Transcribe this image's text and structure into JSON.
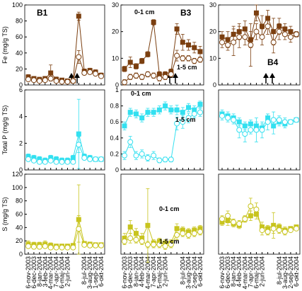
{
  "chart_data": [
    {
      "type": "line",
      "label": "B1",
      "ylabel": "Fe (mg/g TS)",
      "ylim": [
        0,
        100
      ],
      "yticks": [
        0,
        20,
        40,
        60,
        80,
        100
      ],
      "series": [
        {
          "marker": "square",
          "color": "#7b3f10",
          "values": [
            10,
            8,
            7,
            8,
            15,
            7,
            6,
            5,
            5,
            86,
            17,
            18,
            16,
            12
          ],
          "errors": [
            3,
            2,
            2,
            2,
            10,
            3,
            2,
            2,
            2,
            5,
            3,
            3,
            3,
            3
          ]
        },
        {
          "marker": "circle",
          "color": "#7b3f10",
          "values": [
            7,
            6,
            5,
            6,
            8,
            5,
            4,
            4,
            5,
            35,
            15,
            16,
            14,
            11
          ],
          "errors": [
            2,
            2,
            2,
            2,
            3,
            2,
            1,
            1,
            2,
            8,
            2,
            2,
            2,
            2
          ]
        }
      ]
    },
    {
      "type": "line",
      "label": "B3",
      "ylim": [
        0,
        30
      ],
      "yticks": [
        0,
        10,
        20,
        30
      ],
      "series": [
        {
          "name": "0-1 cm",
          "marker": "square",
          "color": "#7b3f10",
          "values": [
            6,
            8.5,
            7,
            9,
            11.5,
            23.5,
            4,
            4,
            5,
            21,
            16,
            15,
            14,
            12.5
          ],
          "errors": [
            1,
            2,
            1,
            1,
            1,
            1,
            1,
            1,
            1,
            2,
            3,
            2,
            2,
            2
          ]
        },
        {
          "name": "1-5 cm",
          "marker": "circle",
          "color": "#7b3f10",
          "values": [
            1,
            3,
            3.5,
            3,
            4,
            3.5,
            2.5,
            3,
            4,
            11,
            10,
            10,
            9,
            9.5
          ],
          "errors": [
            1,
            1,
            1,
            1,
            1,
            1,
            1,
            1,
            1,
            2,
            1,
            1,
            1,
            1
          ]
        }
      ]
    },
    {
      "type": "line",
      "label": "B4",
      "ylim": [
        0,
        30
      ],
      "yticks": [
        0,
        10,
        20,
        30
      ],
      "series": [
        {
          "marker": "square",
          "color": "#7b3f10",
          "values": [
            18,
            17,
            19,
            20,
            21,
            17,
            27,
            22,
            25,
            20,
            22,
            21,
            20,
            19
          ],
          "errors": [
            2,
            3,
            3,
            3,
            3,
            3,
            3,
            4,
            3,
            5,
            3,
            2,
            2,
            1
          ]
        },
        {
          "marker": "circle",
          "color": "#7b3f10",
          "values": [
            16,
            15,
            16,
            18,
            18,
            15,
            20,
            18,
            22,
            16,
            20,
            19,
            18,
            19
          ],
          "errors": [
            2,
            2,
            5,
            4,
            3,
            8,
            3,
            3,
            3,
            4,
            3,
            2,
            2,
            1
          ]
        }
      ]
    },
    {
      "type": "line",
      "ylabel": "Total P (mg/g TS)",
      "ylim": [
        0,
        6
      ],
      "yticks": [
        0,
        2,
        4,
        6
      ],
      "series": [
        {
          "marker": "square",
          "color": "#33e0f0",
          "values": [
            1,
            0.9,
            0.8,
            0.7,
            0.9,
            0.8,
            0.7,
            0.7,
            0.9,
            2.7,
            1,
            0.9,
            0.8,
            0.8
          ],
          "errors": [
            0.2,
            0.2,
            0.2,
            0.2,
            0.2,
            0.2,
            0.2,
            0.2,
            0.2,
            2.6,
            0.2,
            0.2,
            0.1,
            0.1
          ]
        },
        {
          "marker": "circle",
          "color": "#33e0f0",
          "values": [
            0.8,
            0.7,
            0.6,
            0.6,
            0.7,
            0.6,
            0.6,
            0.6,
            0.6,
            1.9,
            0.9,
            0.8,
            0.8,
            0.8
          ],
          "errors": [
            0.1,
            0.1,
            0.1,
            0.1,
            0.1,
            0.1,
            0.1,
            0.1,
            0.1,
            0.6,
            0.1,
            0.1,
            0.1,
            0.1
          ]
        }
      ]
    },
    {
      "type": "line",
      "ylim": [
        0,
        1
      ],
      "yticks": [
        0,
        0.2,
        0.4,
        0.6,
        0.8,
        1
      ],
      "series": [
        {
          "name": "0-1 cm",
          "marker": "square",
          "color": "#33e0f0",
          "values": [
            0.55,
            0.72,
            0.7,
            0.65,
            0.72,
            0.72,
            0.75,
            0.8,
            0.75,
            0.75,
            0.72,
            0.78,
            0.75,
            0.82
          ],
          "errors": [
            0.05,
            0.05,
            0.05,
            0.05,
            0.05,
            0.05,
            0.05,
            0.05,
            0.05,
            0.06,
            0.06,
            0.05,
            0.05,
            0.04
          ]
        },
        {
          "name": "1-5 cm",
          "marker": "circle",
          "color": "#33e0f0",
          "values": [
            0.18,
            0.35,
            0.18,
            0.2,
            0.15,
            0.18,
            0.12,
            0.13,
            0.13,
            0.58,
            0.6,
            0.65,
            0.7,
            0.72
          ],
          "errors": [
            0.05,
            0.07,
            0.05,
            0.05,
            0.04,
            0.05,
            0.03,
            0.03,
            0.03,
            0.08,
            0.08,
            0.06,
            0.05,
            0.05
          ]
        }
      ]
    },
    {
      "type": "line",
      "ylim": [
        0,
        2
      ],
      "series": [
        {
          "marker": "square",
          "color": "#33e0f0",
          "values": [
            1.4,
            1.35,
            1.3,
            1.2,
            1.1,
            1.15,
            1.1,
            1.05,
            1.3,
            1.1,
            1.2,
            1.15,
            1.2,
            1.25
          ],
          "errors": [
            0.1,
            0.1,
            0.1,
            0.1,
            0.1,
            0.1,
            0.1,
            0.1,
            0.1,
            0.2,
            0.1,
            0.1,
            0.05,
            0.05
          ]
        },
        {
          "marker": "circle",
          "color": "#33e0f0",
          "values": [
            1.35,
            1.3,
            1.25,
            1,
            0.9,
            1,
            1,
            1,
            1.2,
            1.25,
            1.25,
            1.2,
            1.2,
            1.25
          ],
          "errors": [
            0.1,
            0.1,
            0.1,
            0.2,
            0.2,
            0.1,
            0.3,
            0.2,
            0.2,
            0.2,
            0.1,
            0.1,
            0.05,
            0.05
          ]
        }
      ]
    },
    {
      "type": "line",
      "ylabel": "S (mg/g TS)",
      "ylim": [
        0,
        120
      ],
      "yticks": [
        0,
        20,
        40,
        60,
        80,
        100,
        120
      ],
      "categories": [
        "6-nov-2003",
        "6-dec-2003",
        "8-jan-2004",
        "3-feb-2004",
        "4-mar-2004",
        "7-apr-2004",
        "6-maj-2004",
        "2-jun-2004",
        null,
        null,
        "8-jul-2004",
        "3-aug-2004",
        "1-sep-2004",
        "6-okt-2004"
      ],
      "series": [
        {
          "marker": "square",
          "color": "#c8c41e",
          "values": [
            15,
            14,
            14,
            15,
            13,
            12,
            12,
            12,
            13,
            52,
            16,
            15,
            14,
            14
          ],
          "errors": [
            5,
            4,
            4,
            5,
            4,
            3,
            3,
            3,
            3,
            52,
            3,
            3,
            3,
            3
          ]
        },
        {
          "marker": "circle",
          "color": "#c8c41e",
          "values": [
            12,
            11,
            11,
            12,
            10,
            10,
            10,
            10,
            10,
            38,
            14,
            13,
            13,
            13
          ],
          "errors": [
            3,
            3,
            3,
            3,
            3,
            3,
            3,
            3,
            3,
            20,
            3,
            3,
            3,
            3
          ]
        }
      ]
    },
    {
      "type": "line",
      "ylim": [
        0,
        50
      ],
      "categories": [
        "6-nov-2003",
        "9-dec-2003",
        "8-jan-2004",
        "4-feb-2004",
        "4-mar-2004",
        "7-apr-2004",
        "5-maj-2004",
        "2-jun-2004",
        null,
        null,
        "8-jul-2004",
        "3-aug-2004",
        "2-sep-2004",
        "6-okt-2004"
      ],
      "series": [
        {
          "name": "0-1 cm",
          "marker": "square",
          "color": "#c8c41e",
          "values": [
            10,
            17,
            13,
            10,
            18,
            7,
            8,
            7,
            7,
            16,
            15,
            14,
            15,
            16
          ],
          "errors": [
            3,
            4,
            3,
            3,
            23,
            2,
            2,
            2,
            2,
            3,
            2,
            2,
            2,
            2
          ]
        },
        {
          "name": "1-5 cm",
          "marker": "circle",
          "color": "#c8c41e",
          "values": [
            8,
            10,
            9,
            8,
            6,
            6,
            6,
            5,
            6,
            12,
            13,
            12,
            13,
            14
          ],
          "errors": [
            2,
            3,
            2,
            2,
            2,
            2,
            2,
            2,
            2,
            3,
            2,
            2,
            2,
            2
          ]
        }
      ]
    },
    {
      "type": "line",
      "ylim": [
        0,
        50
      ],
      "categories": [
        "6-nov-2003",
        "6-dec-2003",
        "8-jan-2004",
        "4-feb-2004",
        "4-mar-2004",
        "7-apr-2004",
        "6-maj-2004",
        "2-jun-2004",
        null,
        null,
        "8-jul-2004",
        "3-aug-2004",
        "2-sep-2004",
        "6-okt-2004"
      ],
      "series": [
        {
          "marker": "square",
          "color": "#c8c41e",
          "values": [
            20,
            21,
            19,
            18,
            22,
            24,
            25,
            17,
            16,
            18,
            17,
            15,
            16,
            17
          ],
          "errors": [
            2,
            3,
            2,
            2,
            2,
            3,
            3,
            3,
            2,
            8,
            2,
            2,
            1,
            1
          ]
        },
        {
          "marker": "circle",
          "color": "#c8c41e",
          "values": [
            22,
            24,
            20,
            19,
            22,
            30,
            28,
            15,
            14,
            16,
            15,
            14,
            15,
            16
          ],
          "errors": [
            2,
            3,
            2,
            2,
            2,
            5,
            4,
            3,
            2,
            3,
            2,
            2,
            1,
            1
          ]
        }
      ]
    }
  ]
}
